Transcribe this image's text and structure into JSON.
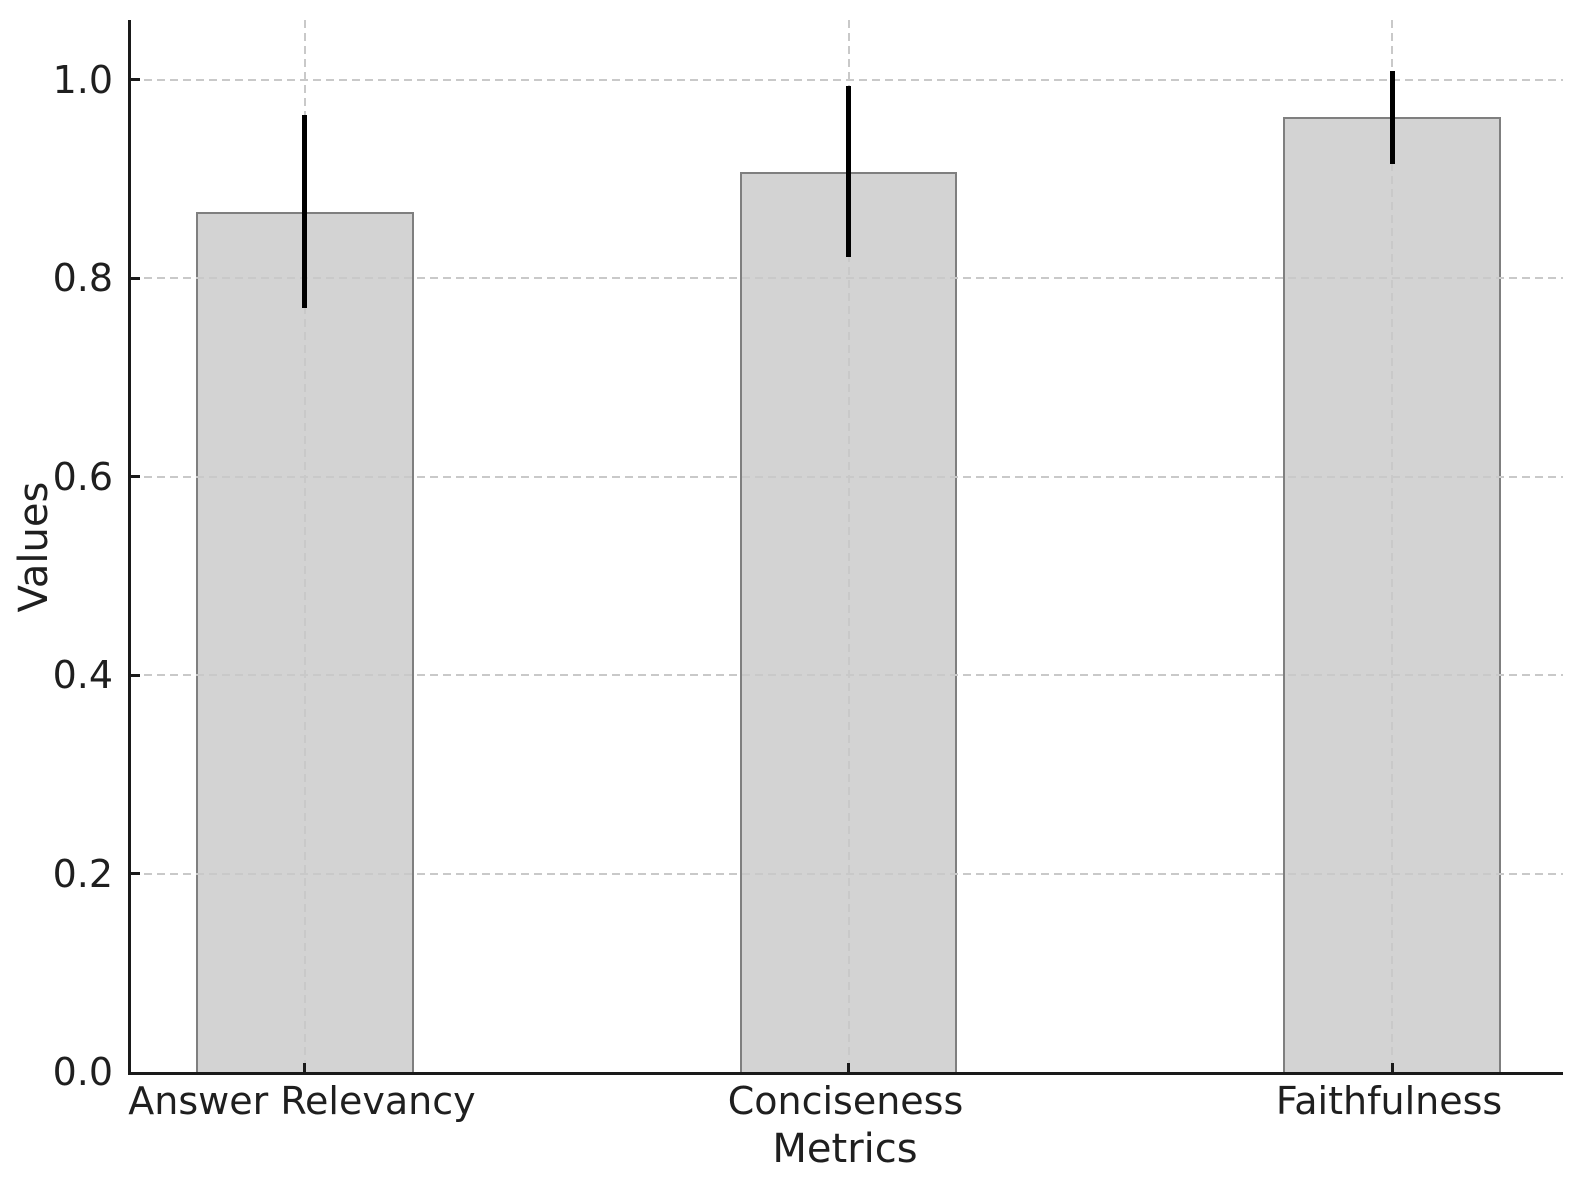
{
  "figure": {
    "background": "#ffffff"
  },
  "chart_data": {
    "type": "bar",
    "title": "",
    "xlabel": "Metrics",
    "ylabel": "Values",
    "categories": [
      "Answer Relevancy",
      "Conciseness",
      "Faithfulness"
    ],
    "values": [
      0.867,
      0.907,
      0.962
    ],
    "error_bars": [
      0.097,
      0.086,
      0.047
    ],
    "ytick_values": [
      0.0,
      0.2,
      0.4,
      0.6,
      0.8,
      1.0
    ],
    "ytick_labels": [
      "0.0",
      "0.2",
      "0.4",
      "0.6",
      "0.8",
      "1.0"
    ],
    "ylim": [
      0,
      1.06
    ],
    "xlim": [
      -0.32,
      2.32
    ],
    "bar_width": 0.4,
    "grid": {
      "horizontal": true,
      "vertical": true,
      "style": "dashed"
    },
    "legend": "none",
    "colors": {
      "bar_fill": "#d3d3d3",
      "bar_edge": "#7f7f7f",
      "error_bar": "#000000",
      "grid": "#c9c9c9",
      "spine": "#1a1a1a",
      "text": "#1f1f1f"
    }
  }
}
